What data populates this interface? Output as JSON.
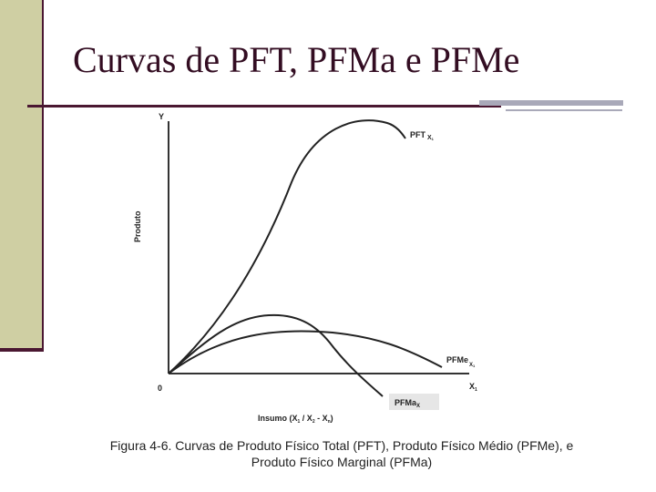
{
  "slide": {
    "title": "Curvas de PFT, PFMa e PFMe",
    "caption_line1": "Figura 4-6. Curvas de Produto Físico Total (PFT), Produto Físico Médio (PFMe), e",
    "caption_line2": "Produto Físico Marginal (PFMa)"
  },
  "figure": {
    "y_axis_letter": "Y",
    "y_axis_title": "Produto",
    "x_axis_letter": "X",
    "x_axis_letter_sub": "1",
    "origin_label": "0",
    "x_axis_title": "Insumo (X",
    "x_axis_title_sub1": "1",
    "x_axis_title_mid": " / X",
    "x_axis_title_sub2": "2",
    "x_axis_title_mid2": " - X",
    "x_axis_title_sub3": "n",
    "x_axis_title_end": ")",
    "curves": {
      "pft": {
        "label": "PFT",
        "label_sub": "X",
        "label_subsub": "1"
      },
      "pfme": {
        "label": "PFMe",
        "label_sub": "X",
        "label_subsub": "1"
      },
      "pfma": {
        "label": "PFMa",
        "label_sub": "X"
      }
    }
  },
  "colors": {
    "title": "#330d22",
    "accent_band": "#cfcfa3",
    "rule": "#4a1731",
    "accent_bar": "#a9a9b9",
    "curve": "#222222",
    "pfma_label_bg": "#e6e6e6"
  }
}
